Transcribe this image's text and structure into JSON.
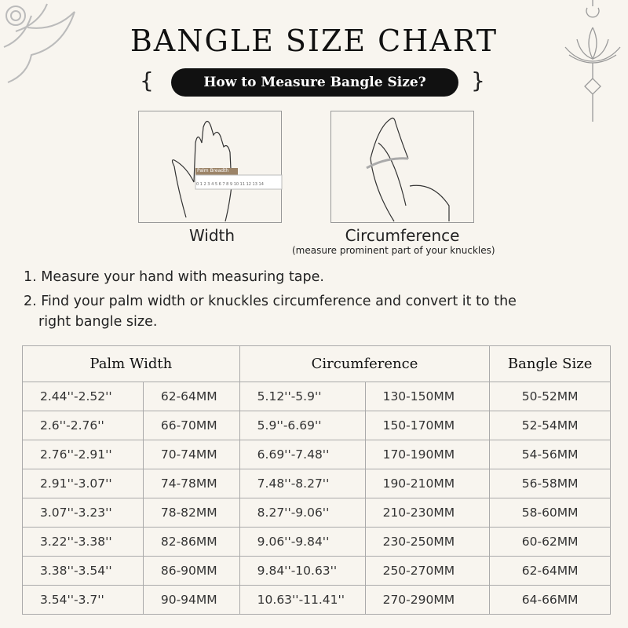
{
  "title": "BANGLE SIZE CHART",
  "subtitle": "How to Measure Bangle Size?",
  "diagrams": [
    {
      "caption": "Width",
      "ruler_label": "Palm Breadth",
      "ruler_ticks": "0 1 2 3 4 5 6 7 8 9 10 11 12 13 14"
    },
    {
      "caption": "Circumference",
      "note": "(measure prominent part of your knuckles)"
    }
  ],
  "steps": [
    "1. Measure your hand with measuring tape.",
    "2. Find your palm width or knuckles circumference and convert it to the",
    "right bangle size."
  ],
  "table": {
    "headers": [
      "Palm Width",
      "Circumference",
      "Bangle Size"
    ],
    "rows": [
      [
        "2.44''-2.52''",
        "62-64MM",
        "5.12''-5.9''",
        "130-150MM",
        "50-52MM"
      ],
      [
        "2.6''-2.76''",
        "66-70MM",
        "5.9''-6.69''",
        "150-170MM",
        "52-54MM"
      ],
      [
        "2.76''-2.91''",
        "70-74MM",
        "6.69''-7.48''",
        "170-190MM",
        "54-56MM"
      ],
      [
        "2.91''-3.07''",
        "74-78MM",
        "7.48''-8.27''",
        "190-210MM",
        "56-58MM"
      ],
      [
        "3.07''-3.23''",
        "78-82MM",
        "8.27''-9.06''",
        "210-230MM",
        "58-60MM"
      ],
      [
        "3.22''-3.38''",
        "82-86MM",
        "9.06''-9.84''",
        "230-250MM",
        "60-62MM"
      ],
      [
        "3.38''-3.54''",
        "86-90MM",
        "9.84''-10.63''",
        "250-270MM",
        "62-64MM"
      ],
      [
        "3.54''-3.7''",
        "90-94MM",
        "10.63''-11.41''",
        "270-290MM",
        "64-66MM"
      ]
    ]
  },
  "colors": {
    "background": "#f8f5ef",
    "pill": "#111111",
    "ruler_label": "#9c8468"
  }
}
